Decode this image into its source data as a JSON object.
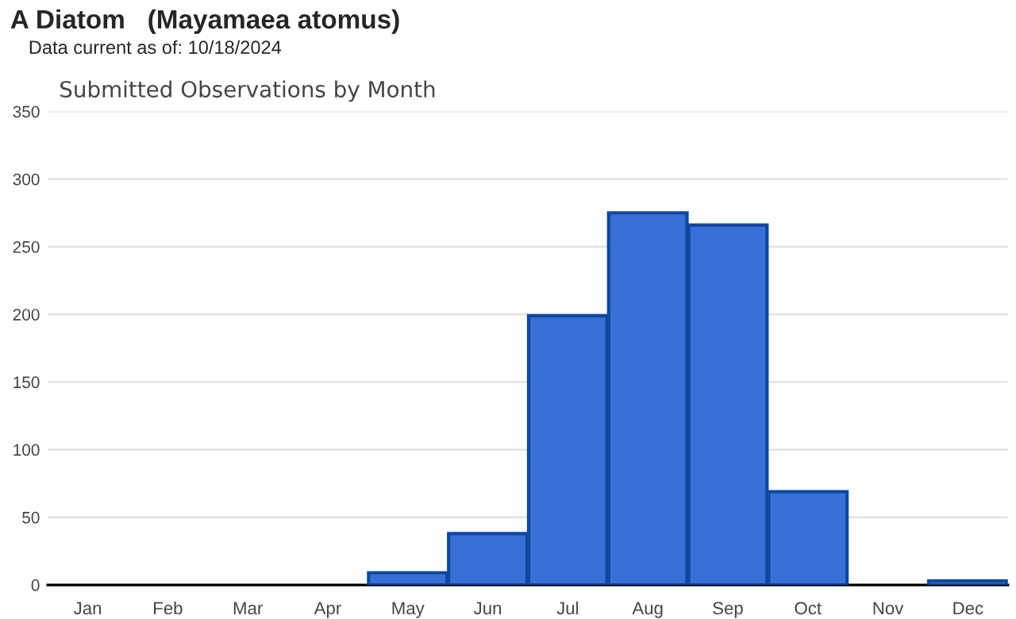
{
  "chart_data": {
    "type": "bar",
    "title": "A Diatom   (Mayamaea atomus)",
    "subtitle": "Data current as of: 10/18/2024",
    "annotations": [
      "Submitted Observations by Month"
    ],
    "categories": [
      "Jan",
      "Feb",
      "Mar",
      "Apr",
      "May",
      "Jun",
      "Jul",
      "Aug",
      "Sep",
      "Oct",
      "Nov",
      "Dec"
    ],
    "values": [
      0,
      0,
      0,
      0,
      9,
      38,
      199,
      275,
      266,
      69,
      0,
      3
    ],
    "color": "#3a6fd6",
    "ylim": [
      0,
      350
    ],
    "yticks": [
      0,
      50,
      100,
      150,
      200,
      250,
      300,
      350
    ],
    "grid": "y"
  }
}
